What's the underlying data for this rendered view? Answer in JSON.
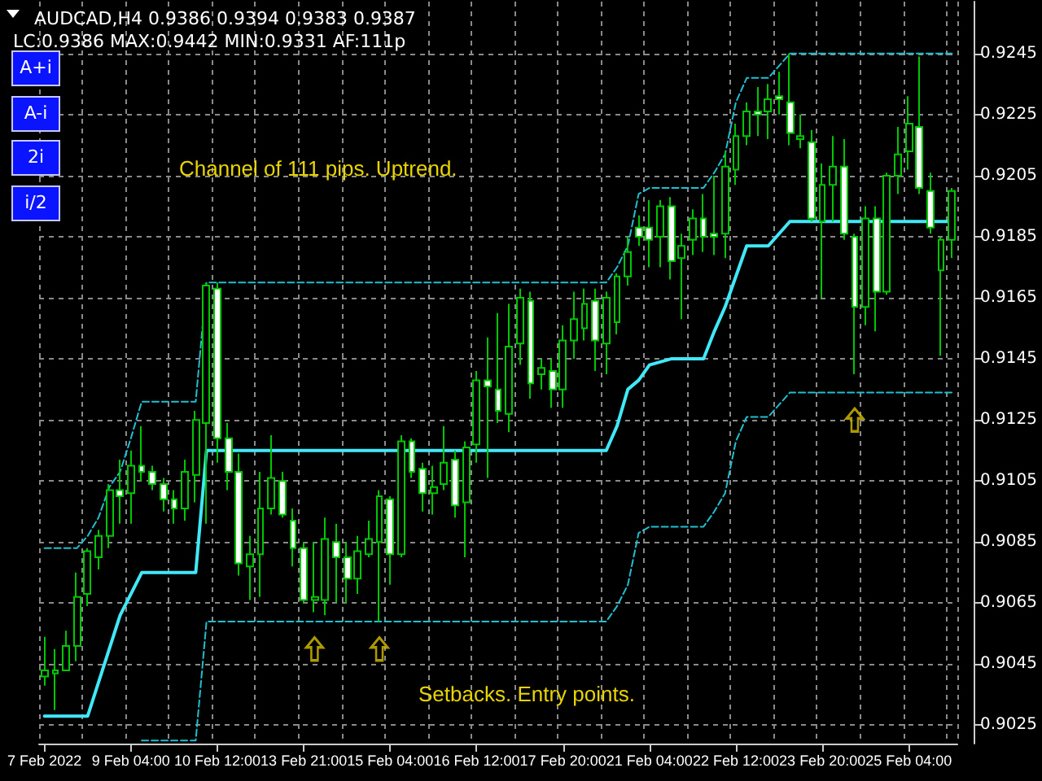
{
  "chart_data": {
    "type": "candlestick",
    "title": "AUDCAD,H4 0.9386 0.9394 0.9383 0.9387",
    "subtitle": "LC:0.9386 MAX:0.9442 MIN:0.9331 AF:111p",
    "annotations": [
      "Channel of 111 pips. Uptrend.",
      "Setbacks. Entry points.",
      "A+i",
      "A-i",
      "2i",
      "i/2"
    ],
    "categories": [
      "7 Feb 2022",
      null,
      null,
      null,
      null,
      null,
      null,
      null,
      "9 Feb 04:00",
      null,
      null,
      null,
      null,
      null,
      null,
      null,
      "10 Feb 12:00",
      null,
      null,
      null,
      null,
      null,
      null,
      null,
      "13 Feb 21:00",
      null,
      null,
      null,
      null,
      null,
      null,
      null,
      "15 Feb 04:00",
      null,
      null,
      null,
      null,
      null,
      null,
      null,
      "16 Feb 12:00",
      null,
      null,
      null,
      null,
      null,
      null,
      null,
      "17 Feb 20:00",
      null,
      null,
      null,
      null,
      null,
      null,
      null,
      "21 Feb 04:00",
      null,
      null,
      null,
      null,
      null,
      null,
      null,
      "22 Feb 12:00",
      null,
      null,
      null,
      null,
      null,
      null,
      null,
      "23 Feb 20:00",
      null,
      null,
      null,
      null,
      null,
      null,
      null,
      "25 Feb 04:00",
      null,
      null,
      null,
      null
    ],
    "ohlc": [
      [
        0.9041,
        0.9054,
        0.9038,
        0.9043
      ],
      [
        0.9042,
        0.905,
        0.903,
        0.9043
      ],
      [
        0.9043,
        0.9056,
        0.9043,
        0.9051
      ],
      [
        0.9051,
        0.9075,
        0.9046,
        0.9067
      ],
      [
        0.9068,
        0.9083,
        0.9064,
        0.9082
      ],
      [
        0.908,
        0.9089,
        0.9076,
        0.9087
      ],
      [
        0.9087,
        0.9104,
        0.9083,
        0.9102
      ],
      [
        0.9102,
        0.9112,
        0.9091,
        0.91
      ],
      [
        0.9101,
        0.9115,
        0.9091,
        0.911
      ],
      [
        0.911,
        0.9123,
        0.9105,
        0.9108
      ],
      [
        0.9108,
        0.911,
        0.9102,
        0.9104
      ],
      [
        0.9104,
        0.9106,
        0.9095,
        0.9099
      ],
      [
        0.9099,
        0.9102,
        0.9091,
        0.9096
      ],
      [
        0.9096,
        0.9112,
        0.9092,
        0.9108
      ],
      [
        0.9107,
        0.9128,
        0.9098,
        0.9125
      ],
      [
        0.9124,
        0.917,
        0.9091,
        0.9169
      ],
      [
        0.9168,
        0.917,
        0.9111,
        0.9119
      ],
      [
        0.9119,
        0.9124,
        0.9102,
        0.9108
      ],
      [
        0.9108,
        0.9114,
        0.9074,
        0.9078
      ],
      [
        0.9077,
        0.9087,
        0.9066,
        0.9081
      ],
      [
        0.9081,
        0.9108,
        0.9067,
        0.9096
      ],
      [
        0.9096,
        0.912,
        0.9094,
        0.9106
      ],
      [
        0.9105,
        0.9108,
        0.9093,
        0.9094
      ],
      [
        0.9092,
        0.9096,
        0.9077,
        0.9083
      ],
      [
        0.9083,
        0.9085,
        0.9065,
        0.9066
      ],
      [
        0.9066,
        0.9085,
        0.9062,
        0.9067
      ],
      [
        0.9066,
        0.9093,
        0.9061,
        0.9086
      ],
      [
        0.9085,
        0.9091,
        0.9065,
        0.908
      ],
      [
        0.908,
        0.9085,
        0.9065,
        0.9073
      ],
      [
        0.9073,
        0.9087,
        0.9068,
        0.9082
      ],
      [
        0.9081,
        0.9092,
        0.908,
        0.9086
      ],
      [
        0.9085,
        0.9102,
        0.9059,
        0.91
      ],
      [
        0.9099,
        0.91,
        0.9071,
        0.9081
      ],
      [
        0.9081,
        0.912,
        0.908,
        0.9118
      ],
      [
        0.9118,
        0.9119,
        0.9106,
        0.9108
      ],
      [
        0.9109,
        0.9111,
        0.9095,
        0.9101
      ],
      [
        0.9101,
        0.911,
        0.9094,
        0.9103
      ],
      [
        0.9104,
        0.9123,
        0.9102,
        0.9111
      ],
      [
        0.9112,
        0.9115,
        0.9093,
        0.9097
      ],
      [
        0.9098,
        0.9118,
        0.908,
        0.9116
      ],
      [
        0.9117,
        0.9141,
        0.9111,
        0.9138
      ],
      [
        0.9138,
        0.9152,
        0.9106,
        0.9136
      ],
      [
        0.9135,
        0.916,
        0.9124,
        0.9128
      ],
      [
        0.9127,
        0.9163,
        0.9121,
        0.9149
      ],
      [
        0.915,
        0.9168,
        0.9143,
        0.9165
      ],
      [
        0.9164,
        0.9167,
        0.9132,
        0.9137
      ],
      [
        0.914,
        0.9145,
        0.9135,
        0.9142
      ],
      [
        0.9141,
        0.9145,
        0.9129,
        0.9135
      ],
      [
        0.9135,
        0.9156,
        0.9129,
        0.9151
      ],
      [
        0.9151,
        0.9167,
        0.9145,
        0.9158
      ],
      [
        0.9155,
        0.9168,
        0.9151,
        0.9163
      ],
      [
        0.9164,
        0.9168,
        0.9141,
        0.9151
      ],
      [
        0.915,
        0.9167,
        0.914,
        0.9165
      ],
      [
        0.9157,
        0.9173,
        0.9153,
        0.9172
      ],
      [
        0.9172,
        0.9185,
        0.9169,
        0.918
      ],
      [
        0.9188,
        0.9192,
        0.9182,
        0.9185
      ],
      [
        0.9188,
        0.9197,
        0.9175,
        0.9184
      ],
      [
        0.9185,
        0.9197,
        0.9175,
        0.9195
      ],
      [
        0.9195,
        0.9198,
        0.9171,
        0.9177
      ],
      [
        0.9178,
        0.9186,
        0.9158,
        0.9182
      ],
      [
        0.9184,
        0.9194,
        0.9179,
        0.9191
      ],
      [
        0.9191,
        0.9199,
        0.918,
        0.9185
      ],
      [
        0.9186,
        0.9205,
        0.9179,
        0.9185
      ],
      [
        0.9186,
        0.9213,
        0.9178,
        0.9208
      ],
      [
        0.9207,
        0.9222,
        0.9202,
        0.9218
      ],
      [
        0.9218,
        0.9229,
        0.9215,
        0.9226
      ],
      [
        0.9226,
        0.9234,
        0.9218,
        0.9225
      ],
      [
        0.9226,
        0.9235,
        0.9217,
        0.923
      ],
      [
        0.9231,
        0.9239,
        0.9225,
        0.923
      ],
      [
        0.9229,
        0.9245,
        0.9215,
        0.9219
      ],
      [
        0.9217,
        0.9225,
        0.9214,
        0.9218
      ],
      [
        0.9216,
        0.922,
        0.919,
        0.9191
      ],
      [
        0.919,
        0.9209,
        0.9165,
        0.9202
      ],
      [
        0.9202,
        0.9218,
        0.919,
        0.9208
      ],
      [
        0.9208,
        0.9217,
        0.9184,
        0.9186
      ],
      [
        0.9185,
        0.9186,
        0.914,
        0.9162
      ],
      [
        0.9162,
        0.9195,
        0.9156,
        0.9191
      ],
      [
        0.9191,
        0.9195,
        0.9154,
        0.9167
      ],
      [
        0.9167,
        0.9206,
        0.9166,
        0.9205
      ],
      [
        0.9205,
        0.9221,
        0.9199,
        0.9212
      ],
      [
        0.9213,
        0.9231,
        0.9207,
        0.9222
      ],
      [
        0.9221,
        0.9244,
        0.9199,
        0.9201
      ],
      [
        0.92,
        0.9206,
        0.9186,
        0.9188
      ],
      [
        0.9174,
        0.9185,
        0.9146,
        0.9184
      ],
      [
        0.9184,
        0.9201,
        0.9178,
        0.92
      ]
    ],
    "series": [
      {
        "type": "line",
        "color": "#40e8f8",
        "values": [
          0.9028,
          0.9028,
          0.9028,
          0.9028,
          0.9028,
          0.9039,
          0.905,
          0.9061,
          0.9068,
          0.9075,
          0.9075,
          0.9075,
          0.9075,
          0.9075,
          0.9075,
          0.9115,
          0.9115,
          0.9115,
          0.9115,
          0.9115,
          0.9115,
          0.9115,
          0.9115,
          0.9115,
          0.9115,
          0.9115,
          0.9115,
          0.9115,
          0.9115,
          0.9115,
          0.9115,
          0.9115,
          0.9115,
          0.9115,
          0.9115,
          0.9115,
          0.9115,
          0.9115,
          0.9115,
          0.9115,
          0.9115,
          0.9115,
          0.9115,
          0.9115,
          0.9115,
          0.9115,
          0.9115,
          0.9115,
          0.9115,
          0.9115,
          0.9115,
          0.9115,
          0.9115,
          0.9123,
          0.9135,
          0.9138,
          0.9143,
          0.9144,
          0.9145,
          0.9145,
          0.9145,
          0.9145,
          0.9154,
          0.9162,
          0.9172,
          0.9182,
          0.9182,
          0.9182,
          0.9186,
          0.919,
          0.919,
          0.919,
          0.919,
          0.919,
          0.919,
          0.919,
          0.919,
          0.919,
          0.919,
          0.919,
          0.919,
          0.919,
          0.919,
          0.919,
          0.919
        ]
      },
      {
        "type": "line",
        "color": "#20c0d0",
        "line_style": "dashed",
        "values": [
          0.9083,
          0.9083,
          0.9083,
          0.9083,
          0.9087,
          0.9093,
          0.9103,
          0.9108,
          0.9119,
          0.9131,
          0.9131,
          0.9131,
          0.9131,
          0.9131,
          0.9131,
          0.917,
          0.917,
          0.917,
          0.917,
          0.917,
          0.917,
          0.917,
          0.917,
          0.917,
          0.917,
          0.917,
          0.917,
          0.917,
          0.917,
          0.917,
          0.917,
          0.917,
          0.917,
          0.917,
          0.917,
          0.917,
          0.917,
          0.917,
          0.917,
          0.917,
          0.917,
          0.917,
          0.917,
          0.917,
          0.917,
          0.917,
          0.917,
          0.917,
          0.917,
          0.917,
          0.917,
          0.917,
          0.917,
          0.9175,
          0.9182,
          0.9199,
          0.9201,
          0.9201,
          0.9201,
          0.9201,
          0.9201,
          0.9201,
          0.9206,
          0.9212,
          0.9229,
          0.9237,
          0.9237,
          0.9237,
          0.9241,
          0.9245,
          0.9245,
          0.9245,
          0.9245,
          0.9245,
          0.9245,
          0.9245,
          0.9245,
          0.9245,
          0.9245,
          0.9245,
          0.9245,
          0.9245,
          0.9245,
          0.9245,
          0.9245
        ]
      },
      {
        "type": "line",
        "color": "#20c0d0",
        "line_style": "dashed",
        "values": [
          null,
          null,
          null,
          null,
          null,
          null,
          null,
          null,
          null,
          0.902,
          0.902,
          0.902,
          0.902,
          0.902,
          0.902,
          0.9059,
          0.9059,
          0.9059,
          0.9059,
          0.9059,
          0.9059,
          0.9059,
          0.9059,
          0.9059,
          0.9059,
          0.9059,
          0.9059,
          0.9059,
          0.9059,
          0.9059,
          0.9059,
          0.9059,
          0.9059,
          0.9059,
          0.9059,
          0.9059,
          0.9059,
          0.9059,
          0.9059,
          0.9059,
          0.9059,
          0.9059,
          0.9059,
          0.9059,
          0.9059,
          0.9059,
          0.9059,
          0.9059,
          0.9059,
          0.9059,
          0.9059,
          0.9059,
          0.9059,
          0.9064,
          0.9071,
          0.9088,
          0.909,
          0.909,
          0.909,
          0.909,
          0.909,
          0.909,
          0.9095,
          0.9101,
          0.9118,
          0.9126,
          0.9126,
          0.9126,
          0.913,
          0.9134,
          0.9134,
          0.9134,
          0.9134,
          0.9134,
          0.9134,
          0.9134,
          0.9134,
          0.9134,
          0.9134,
          0.9134,
          0.9134,
          0.9134,
          0.9134,
          0.9134,
          0.9134
        ]
      },
      {
        "type": "scatter",
        "color": "#d8c000",
        "values": [
          null,
          null,
          null,
          null,
          null,
          null,
          null,
          null,
          null,
          null,
          null,
          null,
          null,
          null,
          null,
          null,
          null,
          null,
          null,
          null,
          null,
          null,
          null,
          null,
          null,
          0.905,
          null,
          null,
          null,
          null,
          null,
          0.905,
          null,
          null,
          null,
          null,
          null,
          null,
          null,
          null,
          null,
          null,
          null,
          null,
          null,
          null,
          null,
          null,
          null,
          null,
          null,
          null,
          null,
          null,
          null,
          null,
          null,
          null,
          null,
          null,
          null,
          null,
          null,
          null,
          null,
          null,
          null,
          null,
          null,
          null,
          null,
          null,
          null,
          null,
          null,
          0.9125,
          null,
          null,
          null,
          null,
          null,
          null,
          null,
          null,
          null
        ]
      }
    ],
    "ylim": [
      0.9019,
      0.9262
    ],
    "yticks": [
      0.9025,
      0.9045,
      0.9065,
      0.9085,
      0.9105,
      0.9125,
      0.9145,
      0.9165,
      0.9185,
      0.9205,
      0.9225,
      0.9245
    ],
    "color": "#00c800",
    "grid": true,
    "marker": "none"
  }
}
